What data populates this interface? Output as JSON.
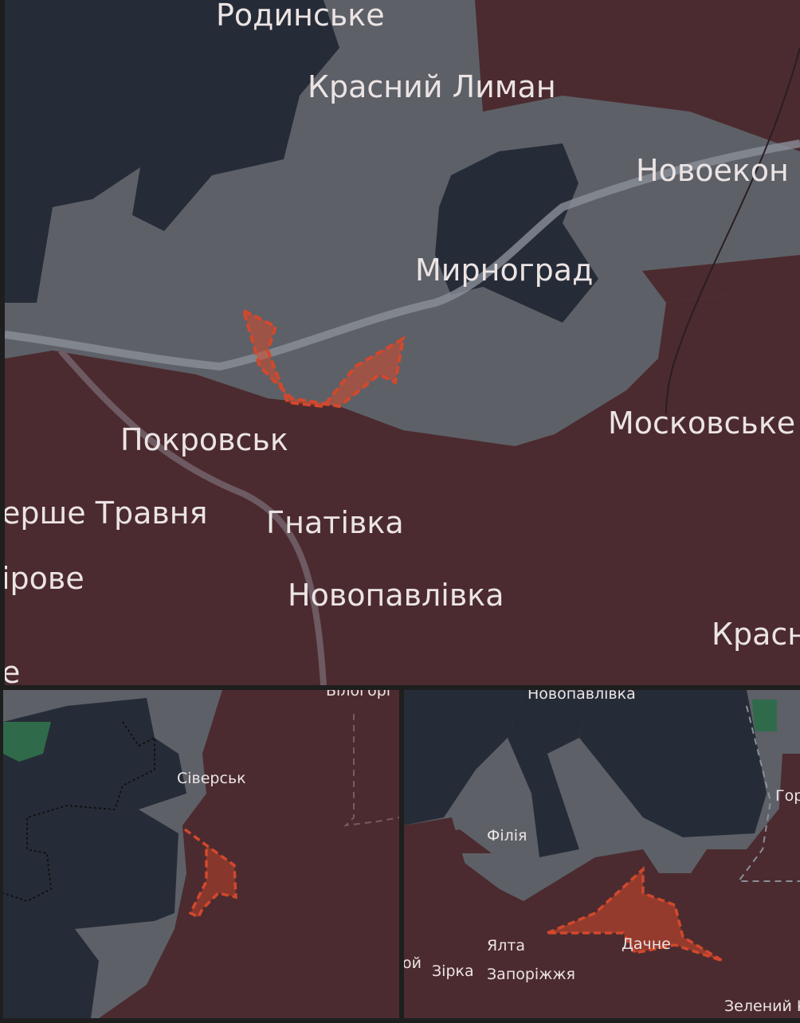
{
  "colors": {
    "occupied": "#4b2b2f",
    "contested": "#5d6067",
    "ukraine": "#262c37",
    "advance": "#d2482c",
    "road": "#8a8f99",
    "forest": "#2f6b4a",
    "frame": "#1e1e1e"
  },
  "main_map": {
    "labels": {
      "rodynske": "Родинське",
      "krasnyi_lyman": "Красний Лиман",
      "novoekon": "Новоекон",
      "myrnohrad": "Мирноград",
      "moskovske": "Московське",
      "pokrovsk": "Покровськ",
      "pershe_travnia": "ерше Травня",
      "hnativka": "Гнатівка",
      "irove": "ірове",
      "novopavlivka": "Новопавлівка",
      "krasn": "Красн",
      "e": "е"
    }
  },
  "inset_left": {
    "labels": {
      "bilohorivka": "Білогорі",
      "siversk": "Сіверськ"
    }
  },
  "inset_right": {
    "labels": {
      "novopavlivka": "Новопавлівка",
      "filiia": "Філія",
      "hor": "Гор",
      "oi": "ой",
      "zirka": "Зірка",
      "yalta": "Ялта",
      "zaporizhzhia": "Запоріжжя",
      "dachne": "Дачне",
      "zelenyi": "Зелений К"
    }
  }
}
